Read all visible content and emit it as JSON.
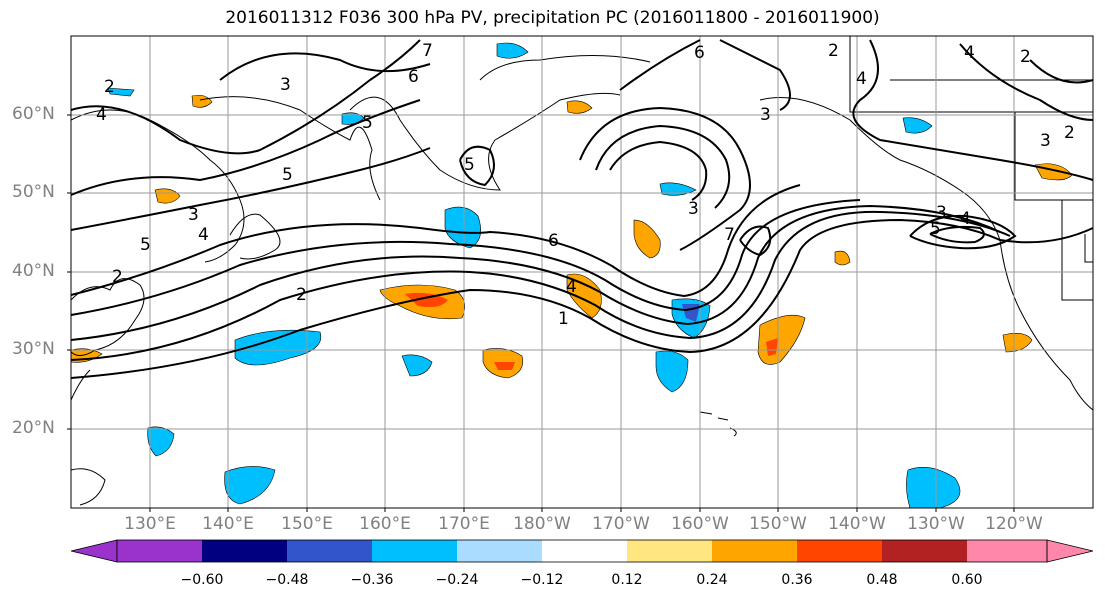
{
  "title": "2016011312 F036 300 hPa PV, precipitation PC (2016011800 - 2016011900)",
  "lat_labels": [
    "60°N",
    "50°N",
    "40°N",
    "30°N",
    "20°N"
  ],
  "lon_labels": [
    "130°E",
    "140°E",
    "150°E",
    "160°E",
    "170°E",
    "180°W",
    "170°W",
    "160°W",
    "150°W",
    "140°W",
    "130°W",
    "120°W"
  ],
  "colorbar": {
    "ticks": [
      "−0.60",
      "−0.48",
      "−0.36",
      "−0.24",
      "−0.12",
      "0.12",
      "0.24",
      "0.36",
      "0.48",
      "0.60"
    ],
    "colors": [
      "#9933cc",
      "#000080",
      "#3355cc",
      "#00bfff",
      "#aadcff",
      "#ffffff",
      "#ffe680",
      "#ffa500",
      "#ff4500",
      "#b22222",
      "#ff88aa"
    ]
  },
  "contour_labels": [
    "2",
    "3",
    "4",
    "5",
    "6",
    "7",
    "1"
  ]
}
